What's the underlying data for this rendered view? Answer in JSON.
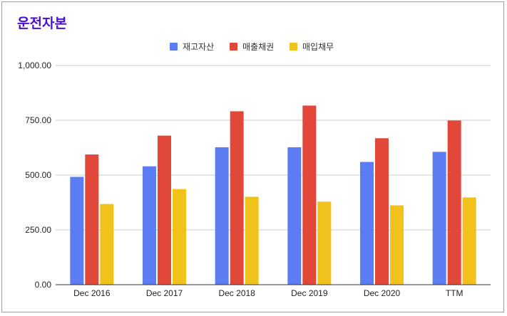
{
  "chart_data": {
    "type": "bar",
    "title": "운전자본",
    "categories": [
      "Dec 2016",
      "Dec 2017",
      "Dec 2018",
      "Dec 2019",
      "Dec 2020",
      "TTM"
    ],
    "series": [
      {
        "name": "재고자산",
        "color": "#5b7cf3",
        "values": [
          492,
          540,
          627,
          627,
          560,
          606
        ]
      },
      {
        "name": "매출채권",
        "color": "#e2483a",
        "values": [
          594,
          680,
          791,
          817,
          668,
          749
        ]
      },
      {
        "name": "매입채무",
        "color": "#f1c21b",
        "values": [
          368,
          436,
          401,
          379,
          362,
          398
        ]
      }
    ],
    "yticks": [
      "0.00",
      "250.00",
      "500.00",
      "750.00",
      "1,000.00"
    ],
    "ylim": [
      0,
      1000
    ],
    "grid": true,
    "legend_position": "top-center"
  }
}
